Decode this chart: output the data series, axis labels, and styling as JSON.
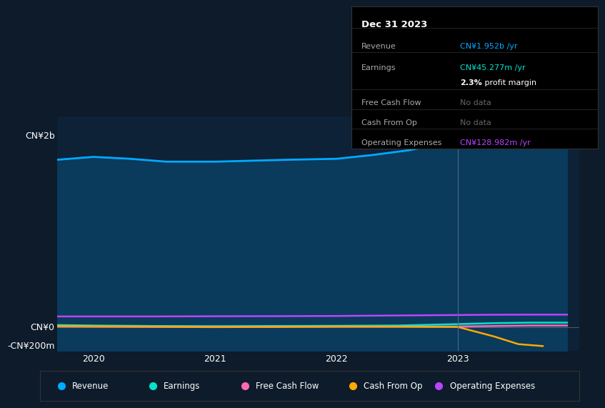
{
  "background_color": "#0d1b2a",
  "plot_bg_color": "#0d2137",
  "ylabel_top": "CN¥2b",
  "ylabel_zero": "CN¥0",
  "ylabel_bottom": "-CN¥200m",
  "x_ticks": [
    2020,
    2021,
    2022,
    2023
  ],
  "x_range": [
    2019.7,
    2024.0
  ],
  "y_range": [
    -250000000.0,
    2200000000.0
  ],
  "series": {
    "revenue": {
      "color": "#00aaff",
      "fill_color": "#0a3a5c",
      "x": [
        2019.7,
        2020.0,
        2020.3,
        2020.6,
        2021.0,
        2021.3,
        2021.6,
        2022.0,
        2022.3,
        2022.6,
        2023.0,
        2023.3,
        2023.6,
        2023.9
      ],
      "y": [
        1750000000.0,
        1780000000.0,
        1760000000.0,
        1730000000.0,
        1730000000.0,
        1740000000.0,
        1750000000.0,
        1760000000.0,
        1800000000.0,
        1850000000.0,
        1950000000.0,
        1880000000.0,
        1900000000.0,
        1952000000.0
      ]
    },
    "earnings": {
      "color": "#00e5cc",
      "x": [
        2019.7,
        2020.0,
        2020.5,
        2021.0,
        2021.5,
        2022.0,
        2022.5,
        2023.0,
        2023.3,
        2023.6,
        2023.9
      ],
      "y": [
        20000000.0,
        15000000.0,
        10000000.0,
        8000000.0,
        10000000.0,
        12000000.0,
        15000000.0,
        30000000.0,
        40000000.0,
        45277000.0,
        45000000.0
      ]
    },
    "free_cash_flow": {
      "color": "#ff69b4",
      "x": [
        2019.7,
        2020.0,
        2020.5,
        2021.0,
        2021.5,
        2022.0,
        2022.5,
        2023.0,
        2023.3,
        2023.6,
        2023.9
      ],
      "y": [
        5000000.0,
        3000000.0,
        0,
        -2000000.0,
        0,
        3000000.0,
        4000000.0,
        5000000.0,
        10000000.0,
        15000000.0,
        15000000.0
      ]
    },
    "cash_from_op": {
      "color": "#ffaa00",
      "x": [
        2019.7,
        2020.0,
        2020.5,
        2021.0,
        2021.5,
        2022.0,
        2022.5,
        2023.0,
        2023.3,
        2023.5,
        2023.7
      ],
      "y": [
        10000000.0,
        8000000.0,
        5000000.0,
        2000000.0,
        3000000.0,
        5000000.0,
        4000000.0,
        0,
        -100000000.0,
        -180000000.0,
        -200000000.0
      ]
    },
    "operating_expenses": {
      "color": "#bb44ff",
      "x": [
        2019.7,
        2020.0,
        2020.5,
        2021.0,
        2021.5,
        2022.0,
        2022.5,
        2023.0,
        2023.3,
        2023.6,
        2023.9
      ],
      "y": [
        110000000.0,
        110000000.0,
        110000000.0,
        112000000.0,
        113000000.0,
        115000000.0,
        120000000.0,
        125000000.0,
        128000000.0,
        128982000.0,
        129000000.0
      ]
    }
  },
  "legend": [
    {
      "label": "Revenue",
      "color": "#00aaff"
    },
    {
      "label": "Earnings",
      "color": "#00e5cc"
    },
    {
      "label": "Free Cash Flow",
      "color": "#ff69b4"
    },
    {
      "label": "Cash From Op",
      "color": "#ffaa00"
    },
    {
      "label": "Operating Expenses",
      "color": "#bb44ff"
    }
  ],
  "vertical_line_x": 2023.0,
  "box": {
    "date": "Dec 31 2023",
    "rows": [
      {
        "label": "Revenue",
        "value": "CN¥1.952b /yr",
        "value_color": "#00aaff",
        "indent": false
      },
      {
        "label": "Earnings",
        "value": "CN¥45.277m /yr",
        "value_color": "#00e5cc",
        "indent": false
      },
      {
        "label": "",
        "value": "2.3% profit margin",
        "value_color": "#ffffff",
        "indent": true,
        "bold_prefix": "2.3%",
        "bold_suffix": " profit margin"
      },
      {
        "label": "Free Cash Flow",
        "value": "No data",
        "value_color": "#666666",
        "indent": false
      },
      {
        "label": "Cash From Op",
        "value": "No data",
        "value_color": "#666666",
        "indent": false
      },
      {
        "label": "Operating Expenses",
        "value": "CN¥128.982m /yr",
        "value_color": "#bb44ff",
        "indent": false
      }
    ],
    "separator_after": [
      0,
      2,
      3,
      4,
      5
    ]
  }
}
